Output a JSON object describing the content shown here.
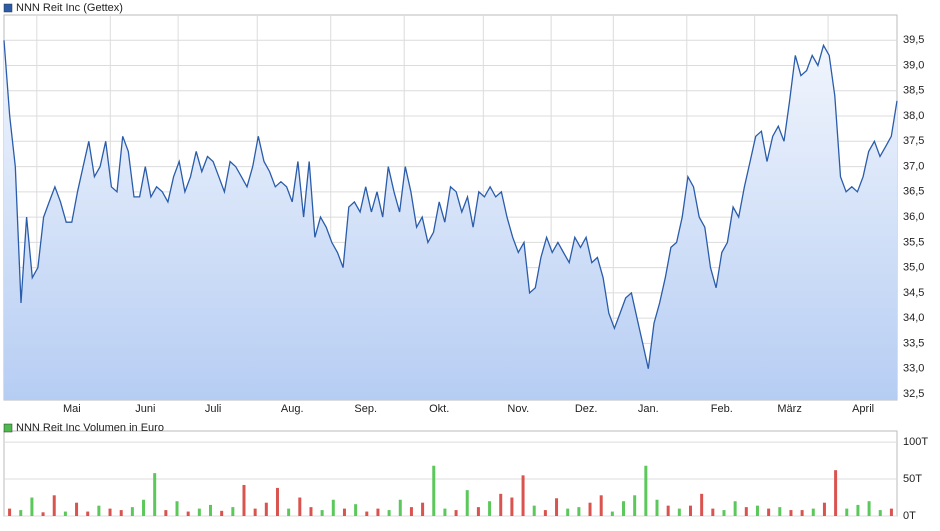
{
  "chart_data": [
    {
      "type": "line",
      "legend": "top-left",
      "series": [
        {
          "name": "NNN Reit Inc (Gettex)",
          "color": "#2a5caa",
          "values": [
            39.5,
            38.0,
            37.0,
            34.3,
            36.0,
            34.8,
            35.0,
            36.0,
            36.3,
            36.6,
            36.3,
            35.9,
            35.9,
            36.5,
            37.0,
            37.5,
            36.8,
            37.0,
            37.5,
            36.6,
            36.5,
            37.6,
            37.3,
            36.4,
            36.4,
            37.0,
            36.4,
            36.6,
            36.5,
            36.3,
            36.8,
            37.1,
            36.5,
            36.8,
            37.3,
            36.9,
            37.2,
            37.1,
            36.8,
            36.5,
            37.1,
            37.0,
            36.8,
            36.6,
            37.0,
            37.6,
            37.1,
            36.9,
            36.6,
            36.7,
            36.6,
            36.3,
            37.1,
            36.0,
            37.1,
            35.6,
            36.0,
            35.8,
            35.5,
            35.3,
            35.0,
            36.2,
            36.3,
            36.1,
            36.6,
            36.1,
            36.5,
            36.0,
            37.0,
            36.5,
            36.1,
            37.0,
            36.5,
            35.8,
            36.0,
            35.5,
            35.7,
            36.3,
            35.9,
            36.6,
            36.5,
            36.1,
            36.4,
            35.8,
            36.5,
            36.4,
            36.6,
            36.4,
            36.5,
            36.0,
            35.6,
            35.3,
            35.5,
            34.5,
            34.6,
            35.2,
            35.6,
            35.3,
            35.5,
            35.3,
            35.1,
            35.6,
            35.4,
            35.6,
            35.1,
            35.2,
            34.8,
            34.1,
            33.8,
            34.1,
            34.4,
            34.5,
            34.0,
            33.5,
            33.0,
            33.9,
            34.3,
            34.8,
            35.4,
            35.5,
            36.0,
            36.8,
            36.6,
            36.0,
            35.8,
            35.0,
            34.6,
            35.3,
            35.5,
            36.2,
            36.0,
            36.6,
            37.1,
            37.6,
            37.7,
            37.1,
            37.6,
            37.8,
            37.5,
            38.3,
            39.2,
            38.8,
            38.9,
            39.2,
            39.0,
            39.4,
            39.2,
            38.4,
            36.8,
            36.5,
            36.6,
            36.5,
            36.8,
            37.3,
            37.5,
            37.2,
            37.4,
            37.6,
            38.3
          ]
        }
      ],
      "ylim": [
        32.38,
        40.0
      ],
      "yticks": [
        {
          "value": 32.5,
          "label": "32,5"
        },
        {
          "value": 33.0,
          "label": "33,0"
        },
        {
          "value": 33.5,
          "label": "33,5"
        },
        {
          "value": 34.0,
          "label": "34,0"
        },
        {
          "value": 34.5,
          "label": "34,5"
        },
        {
          "value": 35.0,
          "label": "35,0"
        },
        {
          "value": 35.5,
          "label": "35,5"
        },
        {
          "value": 36.0,
          "label": "36,0"
        },
        {
          "value": 36.5,
          "label": "36,5"
        },
        {
          "value": 37.0,
          "label": "37,0"
        },
        {
          "value": 37.5,
          "label": "37,5"
        },
        {
          "value": 38.0,
          "label": "38,0"
        },
        {
          "value": 38.5,
          "label": "38,5"
        },
        {
          "value": 39.0,
          "label": "39,0"
        },
        {
          "value": 39.5,
          "label": "39,5"
        }
      ],
      "xlim": [
        0,
        158
      ],
      "xticks": [
        {
          "value": 12,
          "label": "Mai"
        },
        {
          "value": 25,
          "label": "Juni"
        },
        {
          "value": 37,
          "label": "Juli"
        },
        {
          "value": 51,
          "label": "Aug."
        },
        {
          "value": 64,
          "label": "Sep."
        },
        {
          "value": 77,
          "label": "Okt."
        },
        {
          "value": 91,
          "label": "Nov."
        },
        {
          "value": 103,
          "label": "Dez."
        },
        {
          "value": 114,
          "label": "Jan."
        },
        {
          "value": 127,
          "label": "Feb."
        },
        {
          "value": 139,
          "label": "März"
        },
        {
          "value": 152,
          "label": "April"
        }
      ],
      "grid": true
    },
    {
      "type": "bar",
      "legend": "top-left",
      "series": [
        {
          "name": "NNN Reit Inc Volumen in Euro",
          "color": "#4cbb4c",
          "values": [
            10,
            8,
            25,
            5,
            28,
            6,
            18,
            6,
            14,
            10,
            8,
            12,
            22,
            58,
            8,
            20,
            6,
            10,
            15,
            7,
            12,
            42,
            10,
            18,
            38,
            10,
            25,
            12,
            8,
            22,
            10,
            16,
            6,
            10,
            8,
            22,
            12,
            18,
            68,
            10,
            8,
            35,
            12,
            20,
            30,
            25,
            55,
            14,
            8,
            24,
            10,
            12,
            18,
            28,
            6,
            20,
            28,
            68,
            22,
            14,
            10,
            14,
            30,
            10,
            8,
            20,
            12,
            14,
            10,
            12,
            8,
            8,
            10,
            18,
            62,
            10,
            15,
            20,
            8,
            10
          ],
          "colors": [
            "#d9534f",
            "#5cc85c",
            "#5cc85c",
            "#d9534f",
            "#d9534f",
            "#5cc85c",
            "#d9534f",
            "#d9534f",
            "#5cc85c",
            "#d9534f",
            "#d9534f",
            "#5cc85c",
            "#5cc85c",
            "#5cc85c",
            "#d9534f",
            "#5cc85c",
            "#d9534f",
            "#5cc85c",
            "#5cc85c",
            "#d9534f",
            "#5cc85c",
            "#d9534f",
            "#d9534f",
            "#d9534f",
            "#d9534f",
            "#5cc85c",
            "#d9534f",
            "#d9534f",
            "#5cc85c",
            "#5cc85c",
            "#d9534f",
            "#5cc85c",
            "#d9534f",
            "#d9534f",
            "#5cc85c",
            "#5cc85c",
            "#d9534f",
            "#d9534f",
            "#5cc85c",
            "#5cc85c",
            "#d9534f",
            "#5cc85c",
            "#d9534f",
            "#5cc85c",
            "#d9534f",
            "#d9534f",
            "#d9534f",
            "#5cc85c",
            "#d9534f",
            "#d9534f",
            "#5cc85c",
            "#5cc85c",
            "#d9534f",
            "#d9534f",
            "#5cc85c",
            "#5cc85c",
            "#5cc85c",
            "#5cc85c",
            "#5cc85c",
            "#d9534f",
            "#5cc85c",
            "#d9534f",
            "#d9534f",
            "#d9534f",
            "#5cc85c",
            "#5cc85c",
            "#d9534f",
            "#5cc85c",
            "#d9534f",
            "#5cc85c",
            "#d9534f",
            "#d9534f",
            "#5cc85c",
            "#d9534f",
            "#d9534f",
            "#5cc85c",
            "#5cc85c",
            "#5cc85c",
            "#5cc85c",
            "#d9534f"
          ]
        }
      ],
      "ylim": [
        0,
        115
      ],
      "yticks": [
        {
          "value": 0,
          "label": "0T"
        },
        {
          "value": 50,
          "label": "50T"
        },
        {
          "value": 100,
          "label": "100T"
        }
      ],
      "grid": true
    }
  ]
}
